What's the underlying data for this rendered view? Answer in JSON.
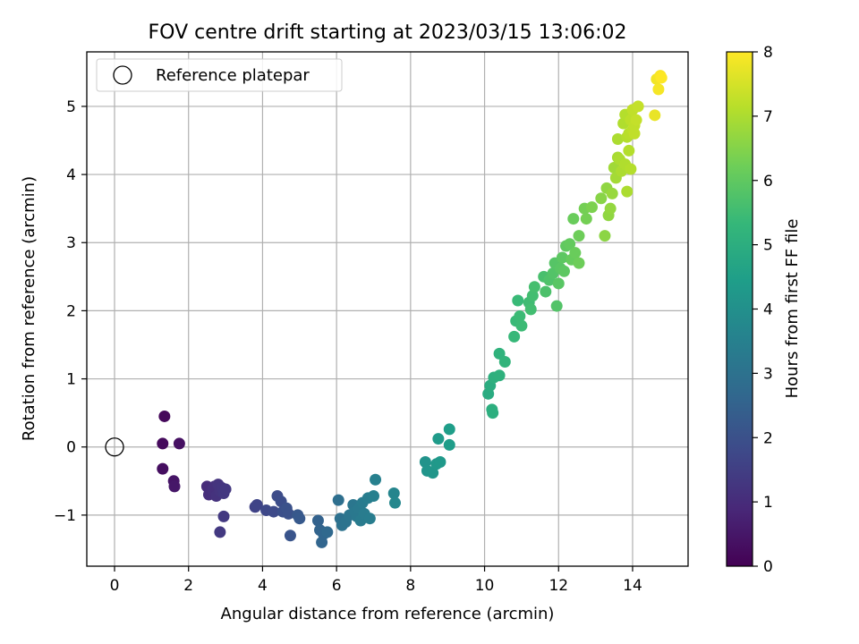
{
  "chart_data": {
    "type": "scatter",
    "title": "FOV centre drift starting at 2023/03/15 13:06:02",
    "xlabel": "Angular distance from reference (arcmin)",
    "ylabel": "Rotation from reference (arcmin)",
    "xlim": [
      -0.75,
      15.5
    ],
    "ylim": [
      -1.75,
      5.8
    ],
    "xticks": [
      0,
      2,
      4,
      6,
      8,
      10,
      12,
      14
    ],
    "yticks": [
      -1,
      0,
      1,
      2,
      3,
      4,
      5
    ],
    "grid": true,
    "legend": {
      "position": "top-left",
      "entries": [
        "Reference platepar"
      ]
    },
    "reference_point": {
      "x": 0,
      "y": 0
    },
    "colorbar": {
      "label": "Hours from first FF file",
      "min": 0,
      "max": 8,
      "ticks": [
        0,
        1,
        2,
        3,
        4,
        5,
        6,
        7,
        8
      ],
      "colormap": "viridis"
    },
    "points": [
      {
        "x": 1.35,
        "y": 0.45,
        "c": 0.15
      },
      {
        "x": 1.3,
        "y": 0.05,
        "c": 0.2
      },
      {
        "x": 1.3,
        "y": -0.32,
        "c": 0.3
      },
      {
        "x": 1.75,
        "y": 0.05,
        "c": 0.35
      },
      {
        "x": 1.6,
        "y": -0.5,
        "c": 0.45
      },
      {
        "x": 1.62,
        "y": -0.58,
        "c": 0.5
      },
      {
        "x": 2.5,
        "y": -0.58,
        "c": 1.0
      },
      {
        "x": 2.55,
        "y": -0.7,
        "c": 1.05
      },
      {
        "x": 2.65,
        "y": -0.62,
        "c": 1.1
      },
      {
        "x": 2.7,
        "y": -0.58,
        "c": 1.1
      },
      {
        "x": 2.75,
        "y": -0.72,
        "c": 1.15
      },
      {
        "x": 2.8,
        "y": -0.55,
        "c": 1.2
      },
      {
        "x": 2.85,
        "y": -0.65,
        "c": 1.2
      },
      {
        "x": 2.9,
        "y": -0.6,
        "c": 1.25
      },
      {
        "x": 2.95,
        "y": -0.68,
        "c": 1.3
      },
      {
        "x": 3.0,
        "y": -0.62,
        "c": 1.3
      },
      {
        "x": 2.95,
        "y": -1.02,
        "c": 1.35
      },
      {
        "x": 2.85,
        "y": -1.25,
        "c": 1.35
      },
      {
        "x": 3.8,
        "y": -0.88,
        "c": 1.6
      },
      {
        "x": 3.85,
        "y": -0.85,
        "c": 1.65
      },
      {
        "x": 4.1,
        "y": -0.93,
        "c": 1.75
      },
      {
        "x": 4.3,
        "y": -0.95,
        "c": 1.8
      },
      {
        "x": 4.4,
        "y": -0.72,
        "c": 1.85
      },
      {
        "x": 4.5,
        "y": -0.8,
        "c": 1.9
      },
      {
        "x": 4.55,
        "y": -0.95,
        "c": 1.95
      },
      {
        "x": 4.65,
        "y": -0.9,
        "c": 2.0
      },
      {
        "x": 4.7,
        "y": -0.98,
        "c": 2.0
      },
      {
        "x": 4.75,
        "y": -1.3,
        "c": 2.1
      },
      {
        "x": 4.95,
        "y": -1.0,
        "c": 2.2
      },
      {
        "x": 5.0,
        "y": -1.05,
        "c": 2.25
      },
      {
        "x": 5.5,
        "y": -1.08,
        "c": 2.5
      },
      {
        "x": 5.55,
        "y": -1.22,
        "c": 2.55
      },
      {
        "x": 5.6,
        "y": -1.4,
        "c": 2.6
      },
      {
        "x": 5.65,
        "y": -1.28,
        "c": 2.6
      },
      {
        "x": 5.75,
        "y": -1.25,
        "c": 2.7
      },
      {
        "x": 6.05,
        "y": -0.78,
        "c": 2.9
      },
      {
        "x": 6.1,
        "y": -1.05,
        "c": 2.95
      },
      {
        "x": 6.15,
        "y": -1.15,
        "c": 3.0
      },
      {
        "x": 6.25,
        "y": -1.1,
        "c": 3.05
      },
      {
        "x": 6.35,
        "y": -1.0,
        "c": 3.1
      },
      {
        "x": 6.45,
        "y": -0.85,
        "c": 3.15
      },
      {
        "x": 6.5,
        "y": -0.95,
        "c": 3.2
      },
      {
        "x": 6.55,
        "y": -1.02,
        "c": 3.2
      },
      {
        "x": 6.6,
        "y": -0.9,
        "c": 3.25
      },
      {
        "x": 6.65,
        "y": -1.08,
        "c": 3.3
      },
      {
        "x": 6.7,
        "y": -0.82,
        "c": 3.3
      },
      {
        "x": 6.75,
        "y": -0.98,
        "c": 3.35
      },
      {
        "x": 6.85,
        "y": -0.75,
        "c": 3.4
      },
      {
        "x": 6.9,
        "y": -1.05,
        "c": 3.4
      },
      {
        "x": 7.0,
        "y": -0.72,
        "c": 3.45
      },
      {
        "x": 7.05,
        "y": -0.48,
        "c": 3.5
      },
      {
        "x": 7.55,
        "y": -0.68,
        "c": 3.65
      },
      {
        "x": 7.58,
        "y": -0.82,
        "c": 3.7
      },
      {
        "x": 8.4,
        "y": -0.22,
        "c": 4.1
      },
      {
        "x": 8.45,
        "y": -0.35,
        "c": 4.15
      },
      {
        "x": 8.6,
        "y": -0.38,
        "c": 4.2
      },
      {
        "x": 8.7,
        "y": -0.25,
        "c": 4.25
      },
      {
        "x": 8.8,
        "y": -0.22,
        "c": 4.3
      },
      {
        "x": 8.75,
        "y": 0.12,
        "c": 4.35
      },
      {
        "x": 9.05,
        "y": 0.03,
        "c": 4.4
      },
      {
        "x": 9.05,
        "y": 0.26,
        "c": 4.45
      },
      {
        "x": 10.1,
        "y": 0.78,
        "c": 4.9
      },
      {
        "x": 10.15,
        "y": 0.9,
        "c": 4.95
      },
      {
        "x": 10.2,
        "y": 0.55,
        "c": 5.0
      },
      {
        "x": 10.22,
        "y": 0.5,
        "c": 5.0
      },
      {
        "x": 10.25,
        "y": 1.02,
        "c": 5.05
      },
      {
        "x": 10.4,
        "y": 1.05,
        "c": 5.1
      },
      {
        "x": 10.4,
        "y": 1.37,
        "c": 5.15
      },
      {
        "x": 10.55,
        "y": 1.25,
        "c": 5.2
      },
      {
        "x": 10.8,
        "y": 1.62,
        "c": 5.35
      },
      {
        "x": 10.85,
        "y": 1.85,
        "c": 5.4
      },
      {
        "x": 10.9,
        "y": 2.15,
        "c": 5.4
      },
      {
        "x": 10.95,
        "y": 1.92,
        "c": 5.45
      },
      {
        "x": 11.0,
        "y": 1.78,
        "c": 5.45
      },
      {
        "x": 11.2,
        "y": 2.12,
        "c": 5.5
      },
      {
        "x": 11.25,
        "y": 2.02,
        "c": 5.55
      },
      {
        "x": 11.3,
        "y": 2.22,
        "c": 5.55
      },
      {
        "x": 11.35,
        "y": 2.35,
        "c": 5.6
      },
      {
        "x": 11.6,
        "y": 2.5,
        "c": 5.65
      },
      {
        "x": 11.65,
        "y": 2.28,
        "c": 5.7
      },
      {
        "x": 11.75,
        "y": 2.45,
        "c": 5.75
      },
      {
        "x": 11.85,
        "y": 2.55,
        "c": 5.8
      },
      {
        "x": 11.9,
        "y": 2.7,
        "c": 5.85
      },
      {
        "x": 11.95,
        "y": 2.07,
        "c": 5.8
      },
      {
        "x": 12.0,
        "y": 2.4,
        "c": 5.9
      },
      {
        "x": 12.05,
        "y": 2.62,
        "c": 5.9
      },
      {
        "x": 12.1,
        "y": 2.78,
        "c": 5.95
      },
      {
        "x": 12.15,
        "y": 2.58,
        "c": 5.95
      },
      {
        "x": 12.2,
        "y": 2.95,
        "c": 6.0
      },
      {
        "x": 12.3,
        "y": 2.98,
        "c": 6.05
      },
      {
        "x": 12.35,
        "y": 2.75,
        "c": 6.1
      },
      {
        "x": 12.4,
        "y": 3.35,
        "c": 6.15
      },
      {
        "x": 12.45,
        "y": 2.85,
        "c": 6.15
      },
      {
        "x": 12.55,
        "y": 2.7,
        "c": 6.2
      },
      {
        "x": 12.55,
        "y": 3.1,
        "c": 6.2
      },
      {
        "x": 12.7,
        "y": 3.5,
        "c": 6.3
      },
      {
        "x": 12.75,
        "y": 3.35,
        "c": 6.3
      },
      {
        "x": 12.9,
        "y": 3.52,
        "c": 6.4
      },
      {
        "x": 13.15,
        "y": 3.65,
        "c": 6.55
      },
      {
        "x": 13.25,
        "y": 3.1,
        "c": 6.6
      },
      {
        "x": 13.3,
        "y": 3.8,
        "c": 6.65
      },
      {
        "x": 13.35,
        "y": 3.4,
        "c": 6.65
      },
      {
        "x": 13.4,
        "y": 3.5,
        "c": 6.7
      },
      {
        "x": 13.45,
        "y": 3.72,
        "c": 6.75
      },
      {
        "x": 13.5,
        "y": 4.1,
        "c": 6.85
      },
      {
        "x": 13.55,
        "y": 3.95,
        "c": 6.9
      },
      {
        "x": 13.6,
        "y": 4.25,
        "c": 6.95
      },
      {
        "x": 13.6,
        "y": 4.52,
        "c": 7.0
      },
      {
        "x": 13.65,
        "y": 4.22,
        "c": 7.0
      },
      {
        "x": 13.7,
        "y": 4.05,
        "c": 7.0
      },
      {
        "x": 13.75,
        "y": 4.75,
        "c": 7.05
      },
      {
        "x": 13.8,
        "y": 4.15,
        "c": 7.05
      },
      {
        "x": 13.8,
        "y": 4.88,
        "c": 7.1
      },
      {
        "x": 13.85,
        "y": 4.55,
        "c": 7.1
      },
      {
        "x": 13.85,
        "y": 3.75,
        "c": 7.0
      },
      {
        "x": 13.9,
        "y": 4.35,
        "c": 7.1
      },
      {
        "x": 13.9,
        "y": 4.6,
        "c": 7.15
      },
      {
        "x": 13.95,
        "y": 4.08,
        "c": 7.1
      },
      {
        "x": 13.95,
        "y": 4.8,
        "c": 7.2
      },
      {
        "x": 14.0,
        "y": 4.65,
        "c": 7.2
      },
      {
        "x": 14.0,
        "y": 4.95,
        "c": 7.25
      },
      {
        "x": 14.05,
        "y": 4.72,
        "c": 7.25
      },
      {
        "x": 14.1,
        "y": 4.8,
        "c": 7.3
      },
      {
        "x": 14.15,
        "y": 5.0,
        "c": 7.3
      },
      {
        "x": 14.05,
        "y": 4.6,
        "c": 7.25
      },
      {
        "x": 14.6,
        "y": 4.87,
        "c": 7.75
      },
      {
        "x": 14.65,
        "y": 5.4,
        "c": 7.85
      },
      {
        "x": 14.7,
        "y": 5.25,
        "c": 7.9
      },
      {
        "x": 14.75,
        "y": 5.45,
        "c": 7.95
      },
      {
        "x": 14.78,
        "y": 5.42,
        "c": 8.0
      }
    ]
  }
}
